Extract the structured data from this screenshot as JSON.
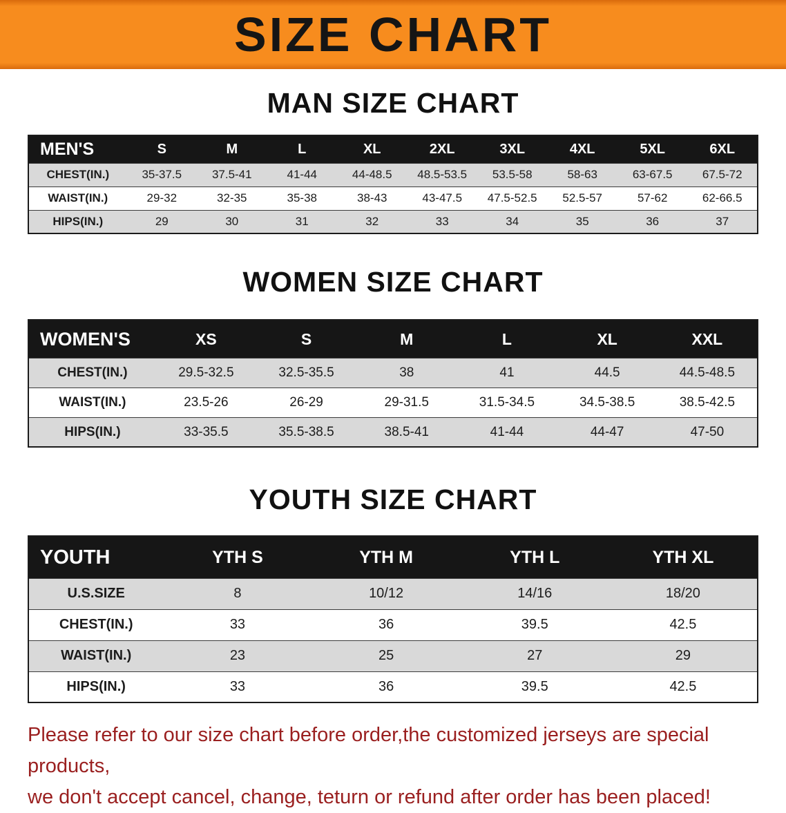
{
  "banner": {
    "title": "SIZE CHART"
  },
  "chart_data": [
    {
      "type": "table",
      "title": "MAN SIZE CHART",
      "columns": [
        "MEN'S",
        "S",
        "M",
        "L",
        "XL",
        "2XL",
        "3XL",
        "4XL",
        "5XL",
        "6XL"
      ],
      "rows": [
        [
          "CHEST(IN.)",
          "35-37.5",
          "37.5-41",
          "41-44",
          "44-48.5",
          "48.5-53.5",
          "53.5-58",
          "58-63",
          "63-67.5",
          "67.5-72"
        ],
        [
          "WAIST(IN.)",
          "29-32",
          "32-35",
          "35-38",
          "38-43",
          "43-47.5",
          "47.5-52.5",
          "52.5-57",
          "57-62",
          "62-66.5"
        ],
        [
          "HIPS(IN.)",
          "29",
          "30",
          "31",
          "32",
          "33",
          "34",
          "35",
          "36",
          "37"
        ]
      ]
    },
    {
      "type": "table",
      "title": "WOMEN SIZE CHART",
      "columns": [
        "WOMEN'S",
        "XS",
        "S",
        "M",
        "L",
        "XL",
        "XXL"
      ],
      "rows": [
        [
          "CHEST(IN.)",
          "29.5-32.5",
          "32.5-35.5",
          "38",
          "41",
          "44.5",
          "44.5-48.5"
        ],
        [
          "WAIST(IN.)",
          "23.5-26",
          "26-29",
          "29-31.5",
          "31.5-34.5",
          "34.5-38.5",
          "38.5-42.5"
        ],
        [
          "HIPS(IN.)",
          "33-35.5",
          "35.5-38.5",
          "38.5-41",
          "41-44",
          "44-47",
          "47-50"
        ]
      ]
    },
    {
      "type": "table",
      "title": "YOUTH SIZE CHART",
      "columns": [
        "YOUTH",
        "YTH S",
        "YTH M",
        "YTH L",
        "YTH XL"
      ],
      "rows": [
        [
          "U.S.SIZE",
          "8",
          "10/12",
          "14/16",
          "18/20"
        ],
        [
          "CHEST(IN.)",
          "33",
          "36",
          "39.5",
          "42.5"
        ],
        [
          "WAIST(IN.)",
          "23",
          "25",
          "27",
          "29"
        ],
        [
          "HIPS(IN.)",
          "33",
          "36",
          "39.5",
          "42.5"
        ]
      ]
    }
  ],
  "footer": {
    "lines": [
      "Please refer to our size chart before order,the customized jerseys are special products,",
      "we don't accept cancel, change, teturn or refund after order has been placed!"
    ]
  },
  "colors": {
    "banner_orange": "#f78c1e",
    "banner_edge": "#d96a0c",
    "table_header_black": "#161616",
    "row_gray": "#d9d9d9",
    "footer_red": "#9a1f1f"
  }
}
